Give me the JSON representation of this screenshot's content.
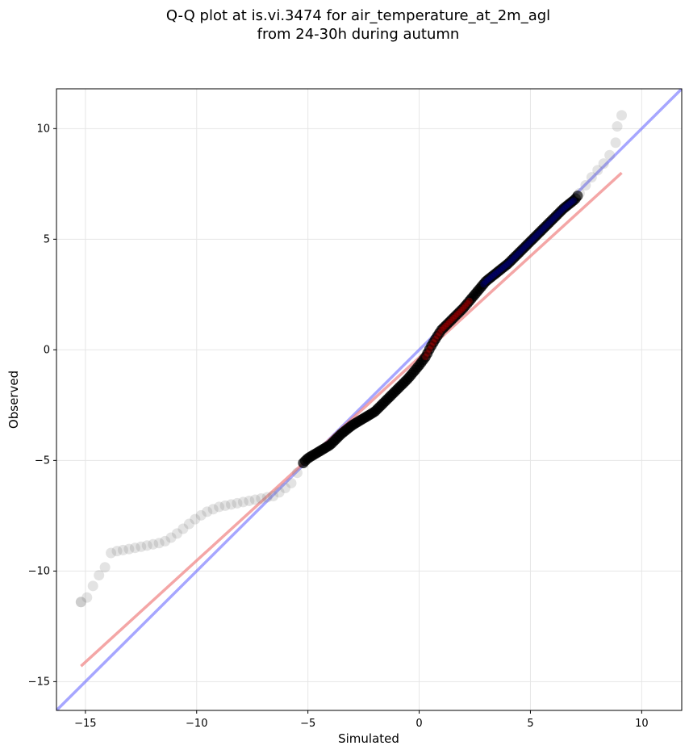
{
  "chart_data": {
    "type": "scatter",
    "title_lines": [
      "Q-Q plot at is.vi.3474 for air_temperature_at_2m_agl",
      "from 24-30h during autumn"
    ],
    "xlabel": "Simulated",
    "ylabel": "Observed",
    "xlim": [
      -16.3,
      11.8
    ],
    "ylim": [
      -16.3,
      11.8
    ],
    "xticks": [
      -15,
      -10,
      -5,
      0,
      5,
      10
    ],
    "yticks": [
      -15,
      -10,
      -5,
      0,
      5,
      10
    ],
    "xtick_labels": [
      "−15",
      "−10",
      "−5",
      "0",
      "5",
      "10"
    ],
    "ytick_labels": [
      "−15",
      "−10",
      "−5",
      "0",
      "5",
      "10"
    ],
    "grid": true,
    "colors": {
      "points": "#000000",
      "tail_points": "#7f7f7f",
      "identity_line": "#6b6bff",
      "fit_line": "#f08080",
      "inner_overlay": "#cc0000",
      "upper_overlay": "#00007a"
    },
    "identity_line": {
      "x": [
        -16.3,
        11.8
      ],
      "y": [
        -16.3,
        11.8
      ]
    },
    "fit_line": {
      "x": [
        -15.2,
        9.1
      ],
      "y": [
        -14.3,
        8.0
      ]
    },
    "quantile_curve": {
      "x": [
        -15.2,
        -15.0,
        -14.8,
        -14.5,
        -14.3,
        -14.1,
        -13.9,
        -13.6,
        -13.0,
        -12.0,
        -11.5,
        -11.0,
        -10.5,
        -10.0,
        -9.5,
        -9.0,
        -8.5,
        -8.0,
        -7.5,
        -7.0,
        -6.5,
        -6.1,
        -5.8,
        -5.6,
        -5.4,
        -5.2,
        -5.0,
        -4.5,
        -4.0,
        -3.5,
        -3.0,
        -2.5,
        -2.0,
        -1.5,
        -1.0,
        -0.5,
        0.0,
        0.3,
        0.5,
        0.8,
        1.0,
        1.5,
        2.0,
        2.5,
        3.0,
        3.5,
        4.0,
        4.5,
        5.0,
        5.5,
        6.0,
        6.5,
        7.0,
        7.3,
        7.6,
        7.9,
        8.2,
        8.5,
        8.8,
        9.0
      ],
      "y": [
        -11.4,
        -11.3,
        -11.0,
        -10.3,
        -10.1,
        -9.8,
        -9.2,
        -9.1,
        -9.0,
        -8.8,
        -8.7,
        -8.4,
        -8.0,
        -7.6,
        -7.3,
        -7.1,
        -7.0,
        -6.9,
        -6.8,
        -6.7,
        -6.6,
        -6.3,
        -6.1,
        -5.8,
        -5.4,
        -5.1,
        -4.9,
        -4.6,
        -4.3,
        -3.8,
        -3.4,
        -3.1,
        -2.8,
        -2.3,
        -1.8,
        -1.3,
        -0.7,
        -0.3,
        0.1,
        0.6,
        0.9,
        1.4,
        1.9,
        2.5,
        3.1,
        3.5,
        3.9,
        4.4,
        4.9,
        5.4,
        5.9,
        6.4,
        6.8,
        7.2,
        7.6,
        8.0,
        8.3,
        8.7,
        9.2,
        10.3
      ]
    },
    "tail_outliers": [
      {
        "x": -15.2,
        "y": -11.4
      },
      {
        "x": 8.9,
        "y": 10.1
      },
      {
        "x": 9.1,
        "y": 10.6
      }
    ]
  }
}
